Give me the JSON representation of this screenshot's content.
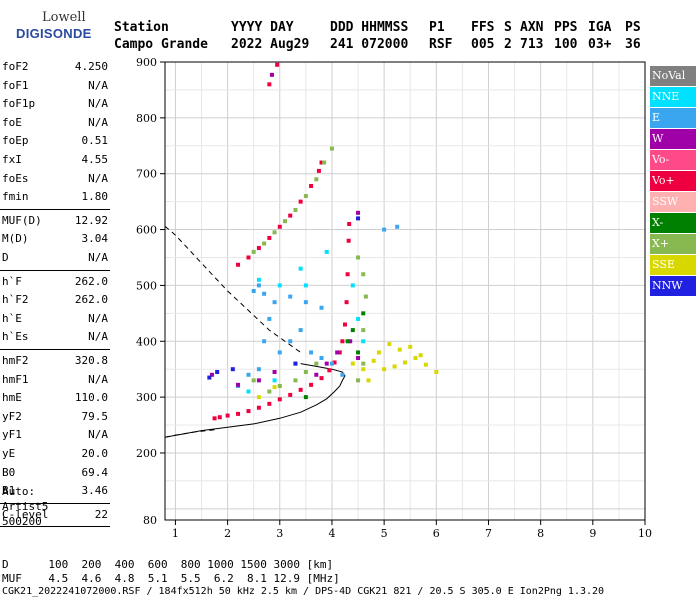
{
  "logo": {
    "line1": "Lowell",
    "line2": "DIGISONDE"
  },
  "header": {
    "col1": [
      "Station",
      "Campo Grande"
    ],
    "col2": [
      "YYYY DAY",
      "2022 Aug29"
    ],
    "col3": [
      "DDD HHMMSS",
      "241 072000"
    ],
    "col4": [
      "P1",
      "RSF"
    ],
    "col5": [
      "FFS",
      "005"
    ],
    "col6": [
      "S",
      "2"
    ],
    "col7": [
      "AXN",
      "713"
    ],
    "col8": [
      "PPS",
      "100"
    ],
    "col9": [
      "IGA",
      "03+"
    ],
    "col10": [
      "PS",
      "36"
    ]
  },
  "params": [
    [
      {
        "k": "foF2",
        "v": "4.250"
      },
      {
        "k": "foF1",
        "v": "N/A"
      },
      {
        "k": "foF1p",
        "v": "N/A"
      },
      {
        "k": "foE",
        "v": "N/A"
      },
      {
        "k": "foEp",
        "v": "0.51"
      },
      {
        "k": "fxI",
        "v": "4.55"
      },
      {
        "k": "foEs",
        "v": "N/A"
      },
      {
        "k": "fmin",
        "v": "1.80"
      }
    ],
    [
      {
        "k": "MUF(D)",
        "v": "12.92"
      },
      {
        "k": "M(D)",
        "v": "3.04"
      },
      {
        "k": "D",
        "v": "N/A"
      }
    ],
    [
      {
        "k": "h`F",
        "v": "262.0"
      },
      {
        "k": "h`F2",
        "v": "262.0"
      },
      {
        "k": "h`E",
        "v": "N/A"
      },
      {
        "k": "h`Es",
        "v": "N/A"
      }
    ],
    [
      {
        "k": "hmF2",
        "v": "320.8"
      },
      {
        "k": "hmF1",
        "v": "N/A"
      },
      {
        "k": "hmE",
        "v": "110.0"
      },
      {
        "k": "yF2",
        "v": "79.5"
      },
      {
        "k": "yF1",
        "v": "N/A"
      },
      {
        "k": "yE",
        "v": "20.0"
      },
      {
        "k": "B0",
        "v": "69.4"
      },
      {
        "k": "B1",
        "v": "3.46"
      }
    ],
    [
      {
        "k": "C-level",
        "v": "22"
      }
    ]
  ],
  "auto": [
    "Auto:",
    "Artist5",
    "500200"
  ],
  "legend": [
    {
      "label": "NoVal",
      "bg": "#808080",
      "fg": "#ffffff"
    },
    {
      "label": "NNE",
      "bg": "#00e0ff",
      "fg": "#ffffff"
    },
    {
      "label": "E",
      "bg": "#3aa6f0",
      "fg": "#ffffff"
    },
    {
      "label": "W",
      "bg": "#a000a8",
      "fg": "#ffffff"
    },
    {
      "label": "Vo-",
      "bg": "#ff4a8a",
      "fg": "#ffffff"
    },
    {
      "label": "Vo+",
      "bg": "#ee0040",
      "fg": "#ffffff"
    },
    {
      "label": "SSW",
      "bg": "#ffb0b0",
      "fg": "#ffffff"
    },
    {
      "label": "X-",
      "bg": "#008000",
      "fg": "#ffffff"
    },
    {
      "label": "X+",
      "bg": "#88b850",
      "fg": "#ffffff"
    },
    {
      "label": "SSE",
      "bg": "#d8d800",
      "fg": "#ffffff"
    },
    {
      "label": "NNW",
      "bg": "#2020e0",
      "fg": "#ffffff"
    }
  ],
  "bottom": {
    "d_line": "D      100  200  400  600  800 1000 1500 3000 [km]",
    "muf_line": "MUF    4.5  4.6  4.8  5.1  5.5  6.2  8.1 12.9 [MHz]",
    "file_line": "CGK21_2022241072000.RSF / 184fx512h 50 kHz 2.5 km / DPS-4D CGK21 821 / 20.5 S 305.0 E Ion2Png 1.3.20"
  },
  "chart_data": {
    "type": "scatter",
    "title": "",
    "xlabel": "",
    "ylabel": "",
    "xlim": [
      0.8,
      10
    ],
    "ylim": [
      80,
      900
    ],
    "xticks": [
      1,
      2,
      3,
      4,
      5,
      6,
      7,
      8,
      9,
      10
    ],
    "yticks": [
      200,
      300,
      400,
      500,
      600,
      700,
      800,
      900
    ],
    "ytick_labels": [
      "200",
      "300",
      "400",
      "500",
      "600",
      "700",
      "800",
      "900"
    ],
    "y_bottom_label": "80",
    "grid": true,
    "series": [
      {
        "color": "#ee0040",
        "points": [
          [
            1.75,
            262
          ],
          [
            1.85,
            264
          ],
          [
            2.0,
            267
          ],
          [
            2.2,
            270
          ],
          [
            2.4,
            275
          ],
          [
            2.6,
            281
          ],
          [
            2.8,
            288
          ],
          [
            3.0,
            296
          ],
          [
            3.2,
            304
          ],
          [
            3.4,
            313
          ],
          [
            3.6,
            322
          ],
          [
            3.8,
            334
          ],
          [
            3.95,
            348
          ],
          [
            4.05,
            362
          ],
          [
            4.15,
            380
          ],
          [
            4.2,
            400
          ],
          [
            4.25,
            430
          ],
          [
            4.28,
            470
          ],
          [
            4.3,
            520
          ],
          [
            4.32,
            580
          ],
          [
            4.33,
            610
          ],
          [
            2.2,
            537
          ],
          [
            2.4,
            550
          ],
          [
            2.6,
            567
          ],
          [
            2.8,
            585
          ],
          [
            3.0,
            605
          ],
          [
            3.2,
            625
          ],
          [
            3.4,
            650
          ],
          [
            3.6,
            678
          ],
          [
            3.75,
            705
          ],
          [
            3.8,
            720
          ],
          [
            2.8,
            860
          ],
          [
            2.95,
            895
          ]
        ]
      },
      {
        "color": "#88b850",
        "points": [
          [
            2.5,
            560
          ],
          [
            2.7,
            575
          ],
          [
            2.9,
            595
          ],
          [
            3.1,
            615
          ],
          [
            3.3,
            635
          ],
          [
            3.5,
            660
          ],
          [
            3.7,
            690
          ],
          [
            3.85,
            720
          ],
          [
            4.0,
            745
          ],
          [
            2.5,
            330
          ],
          [
            2.8,
            310
          ],
          [
            3.0,
            320
          ],
          [
            3.3,
            330
          ],
          [
            3.5,
            345
          ],
          [
            3.7,
            360
          ],
          [
            4.5,
            330
          ],
          [
            4.6,
            360
          ],
          [
            4.6,
            420
          ],
          [
            4.65,
            480
          ],
          [
            4.6,
            520
          ],
          [
            4.5,
            550
          ]
        ]
      },
      {
        "color": "#3aa6f0",
        "points": [
          [
            2.2,
            320
          ],
          [
            2.4,
            340
          ],
          [
            2.6,
            350
          ],
          [
            2.7,
            400
          ],
          [
            2.8,
            440
          ],
          [
            2.9,
            470
          ],
          [
            3.0,
            380
          ],
          [
            3.2,
            400
          ],
          [
            3.3,
            360
          ],
          [
            3.4,
            420
          ],
          [
            3.6,
            380
          ],
          [
            3.8,
            370
          ],
          [
            4.0,
            360
          ],
          [
            4.2,
            340
          ],
          [
            2.5,
            490
          ],
          [
            2.6,
            500
          ],
          [
            2.7,
            485
          ],
          [
            3.2,
            480
          ],
          [
            3.5,
            470
          ],
          [
            3.8,
            460
          ],
          [
            5.0,
            600
          ],
          [
            5.25,
            605
          ]
        ]
      },
      {
        "color": "#00e0ff",
        "points": [
          [
            2.6,
            510
          ],
          [
            3.0,
            500
          ],
          [
            3.4,
            530
          ],
          [
            3.5,
            500
          ],
          [
            3.9,
            560
          ],
          [
            4.4,
            500
          ],
          [
            4.5,
            440
          ],
          [
            4.6,
            400
          ],
          [
            2.4,
            310
          ],
          [
            2.9,
            330
          ]
        ]
      },
      {
        "color": "#d8d800",
        "points": [
          [
            4.4,
            360
          ],
          [
            4.6,
            350
          ],
          [
            4.8,
            365
          ],
          [
            5.0,
            350
          ],
          [
            5.2,
            355
          ],
          [
            5.4,
            362
          ],
          [
            5.6,
            370
          ],
          [
            5.8,
            358
          ],
          [
            6.0,
            345
          ],
          [
            4.9,
            380
          ],
          [
            5.1,
            395
          ],
          [
            5.3,
            385
          ],
          [
            5.5,
            390
          ],
          [
            5.7,
            375
          ],
          [
            4.7,
            330
          ],
          [
            2.6,
            300
          ],
          [
            2.9,
            318
          ]
        ]
      },
      {
        "color": "#a000a8",
        "points": [
          [
            3.7,
            340
          ],
          [
            3.9,
            360
          ],
          [
            4.1,
            380
          ],
          [
            4.35,
            400
          ],
          [
            4.5,
            370
          ],
          [
            2.9,
            345
          ],
          [
            1.7,
            340
          ],
          [
            2.2,
            322
          ],
          [
            2.6,
            330
          ],
          [
            4.5,
            630
          ],
          [
            2.85,
            877
          ]
        ]
      },
      {
        "color": "#2020e0",
        "points": [
          [
            1.65,
            335
          ],
          [
            1.8,
            345
          ],
          [
            2.1,
            350
          ],
          [
            3.3,
            360
          ],
          [
            4.5,
            620
          ]
        ]
      },
      {
        "color": "#008000",
        "points": [
          [
            4.3,
            400
          ],
          [
            4.4,
            420
          ],
          [
            4.5,
            380
          ],
          [
            4.6,
            450
          ],
          [
            3.5,
            300
          ]
        ]
      }
    ],
    "curves": {
      "solid": [
        [
          0.8,
          228
        ],
        [
          1.5,
          240
        ],
        [
          2.0,
          246
        ],
        [
          2.5,
          252
        ],
        [
          3.0,
          262
        ],
        [
          3.4,
          273
        ],
        [
          3.7,
          286
        ],
        [
          3.9,
          297
        ],
        [
          4.05,
          310
        ],
        [
          4.15,
          320
        ],
        [
          4.2,
          330
        ],
        [
          4.25,
          338
        ],
        [
          4.2,
          345
        ],
        [
          4.0,
          350
        ],
        [
          3.7,
          355
        ],
        [
          3.4,
          360
        ]
      ],
      "dashed_left": [
        [
          0.8,
          606
        ],
        [
          1.0,
          590
        ],
        [
          1.3,
          560
        ],
        [
          1.6,
          530
        ],
        [
          2.0,
          490
        ],
        [
          2.4,
          455
        ],
        [
          2.8,
          420
        ],
        [
          3.1,
          400
        ],
        [
          3.4,
          380
        ]
      ],
      "dashed_bottom": [
        [
          0.8,
          228
        ],
        [
          1.0,
          232
        ],
        [
          1.4,
          238
        ],
        [
          1.8,
          242
        ]
      ]
    }
  }
}
